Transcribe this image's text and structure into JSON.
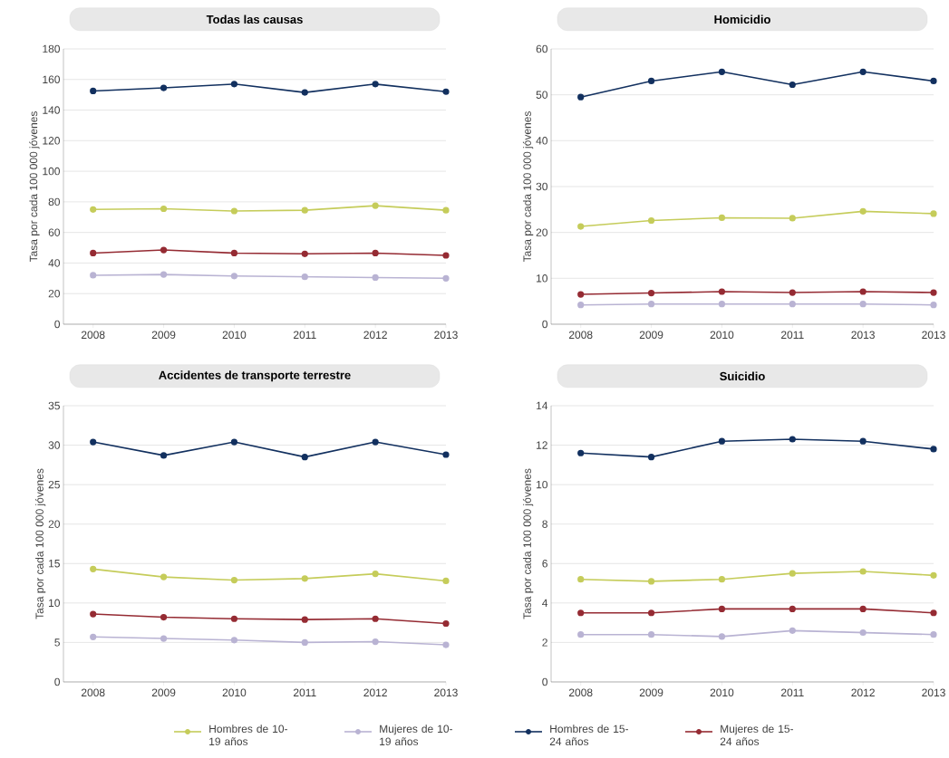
{
  "chart_data": [
    {
      "type": "line",
      "title": "Todas las causas",
      "ylabel": "Tasa por cada 100 000 jóvenes",
      "categories": [
        "2008",
        "2009",
        "2010",
        "2011",
        "2012",
        "2013"
      ],
      "ylim": [
        0,
        180
      ],
      "yticks": [
        0,
        20,
        40,
        60,
        80,
        100,
        120,
        140,
        160,
        180
      ],
      "grid": "y",
      "marker": "circle",
      "legend": "bottom",
      "series": [
        {
          "name": "Hombres de 10-19 años",
          "color": "#c5cc5a",
          "values": [
            75,
            75.5,
            74,
            74.5,
            77.5,
            74.5
          ]
        },
        {
          "name": "Mujeres de 10-19 años",
          "color": "#b9b3d3",
          "values": [
            32,
            32.5,
            31.5,
            31,
            30.5,
            30
          ]
        },
        {
          "name": "Hombres de 15-24 años",
          "color": "#12305f",
          "values": [
            152.5,
            154.5,
            157,
            151.5,
            157,
            152
          ]
        },
        {
          "name": "Mujeres de 15-24 años",
          "color": "#952b33",
          "values": [
            46.5,
            48.5,
            46.5,
            46,
            46.5,
            45
          ]
        }
      ]
    },
    {
      "type": "line",
      "title": "Homicidio",
      "ylabel": "Tasa por cada 100 000 jóvenes",
      "categories": [
        "2008",
        "2009",
        "2010",
        "2011",
        "2013",
        "2013"
      ],
      "ylim": [
        0,
        60
      ],
      "yticks": [
        0,
        10,
        20,
        30,
        40,
        50,
        60
      ],
      "grid": "y",
      "marker": "circle",
      "series": [
        {
          "color": "#c5cc5a",
          "values": [
            21.3,
            22.6,
            23.2,
            23.1,
            24.6,
            24.1
          ]
        },
        {
          "color": "#b9b3d3",
          "values": [
            4.2,
            4.4,
            4.4,
            4.4,
            4.4,
            4.2
          ]
        },
        {
          "color": "#12305f",
          "values": [
            49.5,
            53,
            55,
            52.2,
            55,
            53
          ]
        },
        {
          "color": "#952b33",
          "values": [
            6.5,
            6.8,
            7.1,
            6.9,
            7.1,
            6.9
          ]
        }
      ]
    },
    {
      "type": "line",
      "title": "Accidentes de transporte terrestre",
      "ylabel": "Tasa por cada 100 000 jóvenes",
      "categories": [
        "2008",
        "2009",
        "2010",
        "2011",
        "2012",
        "2013"
      ],
      "ylim": [
        0,
        35
      ],
      "yticks": [
        0,
        5,
        10,
        15,
        20,
        25,
        30,
        35
      ],
      "grid": "y",
      "marker": "circle",
      "series": [
        {
          "color": "#c5cc5a",
          "values": [
            14.3,
            13.3,
            12.9,
            13.1,
            13.7,
            12.8
          ]
        },
        {
          "color": "#b9b3d3",
          "values": [
            5.7,
            5.5,
            5.3,
            5.0,
            5.1,
            4.7
          ]
        },
        {
          "color": "#12305f",
          "values": [
            30.4,
            28.7,
            30.4,
            28.5,
            30.4,
            28.8
          ]
        },
        {
          "color": "#952b33",
          "values": [
            8.6,
            8.2,
            8.0,
            7.9,
            8.0,
            7.4
          ]
        }
      ]
    },
    {
      "type": "line",
      "title": "Suicidio",
      "ylabel": "Tasa por cada 100 000 jóvenes",
      "categories": [
        "2008",
        "2009",
        "2010",
        "2011",
        "2012",
        "2013"
      ],
      "ylim": [
        0,
        14
      ],
      "yticks": [
        0,
        2,
        4,
        6,
        8,
        10,
        12,
        14
      ],
      "grid": "y",
      "marker": "circle",
      "series": [
        {
          "color": "#c5cc5a",
          "values": [
            5.2,
            5.1,
            5.2,
            5.5,
            5.6,
            5.4
          ]
        },
        {
          "color": "#b9b3d3",
          "values": [
            2.4,
            2.4,
            2.3,
            2.6,
            2.5,
            2.4
          ]
        },
        {
          "color": "#12305f",
          "values": [
            11.6,
            11.4,
            12.2,
            12.3,
            12.2,
            11.8
          ]
        },
        {
          "color": "#952b33",
          "values": [
            3.5,
            3.5,
            3.7,
            3.7,
            3.7,
            3.5
          ]
        }
      ]
    }
  ]
}
